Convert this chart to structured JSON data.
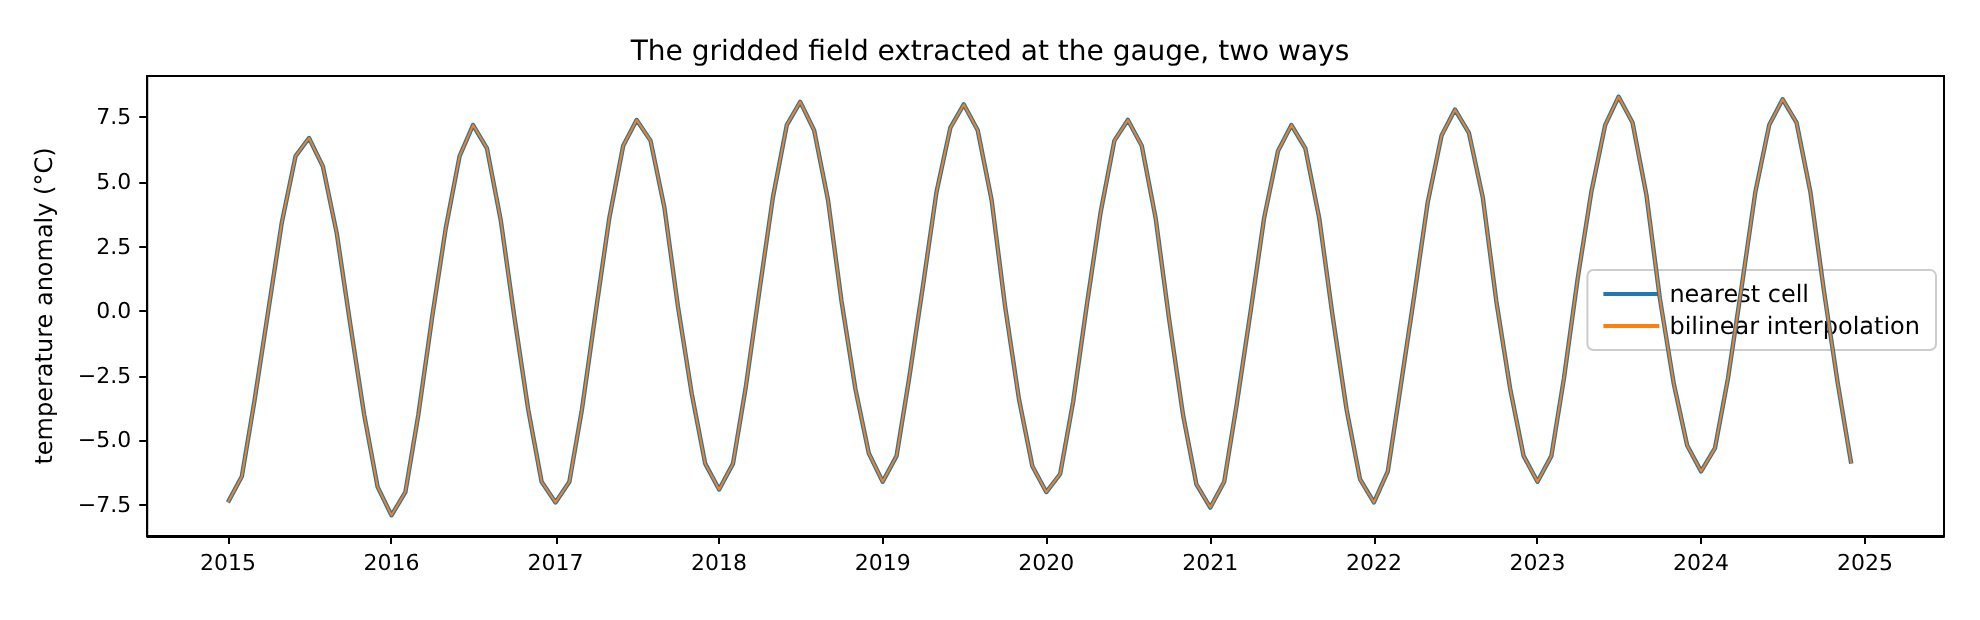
{
  "chart_data": {
    "type": "line",
    "title": "The gridded field extracted at the gauge, two ways",
    "ylabel": "temperature anomaly (°C)",
    "x": [
      "2015-01",
      "2015-02",
      "2015-03",
      "2015-04",
      "2015-05",
      "2015-06",
      "2015-07",
      "2015-08",
      "2015-09",
      "2015-10",
      "2015-11",
      "2015-12",
      "2016-01",
      "2016-02",
      "2016-03",
      "2016-04",
      "2016-05",
      "2016-06",
      "2016-07",
      "2016-08",
      "2016-09",
      "2016-10",
      "2016-11",
      "2016-12",
      "2017-01",
      "2017-02",
      "2017-03",
      "2017-04",
      "2017-05",
      "2017-06",
      "2017-07",
      "2017-08",
      "2017-09",
      "2017-10",
      "2017-11",
      "2017-12",
      "2018-01",
      "2018-02",
      "2018-03",
      "2018-04",
      "2018-05",
      "2018-06",
      "2018-07",
      "2018-08",
      "2018-09",
      "2018-10",
      "2018-11",
      "2018-12",
      "2019-01",
      "2019-02",
      "2019-03",
      "2019-04",
      "2019-05",
      "2019-06",
      "2019-07",
      "2019-08",
      "2019-09",
      "2019-10",
      "2019-11",
      "2019-12",
      "2020-01",
      "2020-02",
      "2020-03",
      "2020-04",
      "2020-05",
      "2020-06",
      "2020-07",
      "2020-08",
      "2020-09",
      "2020-10",
      "2020-11",
      "2020-12",
      "2021-01",
      "2021-02",
      "2021-03",
      "2021-04",
      "2021-05",
      "2021-06",
      "2021-07",
      "2021-08",
      "2021-09",
      "2021-10",
      "2021-11",
      "2021-12",
      "2022-01",
      "2022-02",
      "2022-03",
      "2022-04",
      "2022-05",
      "2022-06",
      "2022-07",
      "2022-08",
      "2022-09",
      "2022-10",
      "2022-11",
      "2022-12",
      "2023-01",
      "2023-02",
      "2023-03",
      "2023-04",
      "2023-05",
      "2023-06",
      "2023-07",
      "2023-08",
      "2023-09",
      "2023-10",
      "2023-11",
      "2023-12",
      "2024-01",
      "2024-02",
      "2024-03",
      "2024-04",
      "2024-05",
      "2024-06",
      "2024-07",
      "2024-08",
      "2024-09",
      "2024-10",
      "2024-11",
      "2024-12"
    ],
    "series": [
      {
        "name": "nearest cell",
        "color": "#1f77b4",
        "values": [
          -7.4,
          -6.4,
          -3.5,
          0,
          3.4,
          6.0,
          6.7,
          5.6,
          3.0,
          -0.5,
          -4.0,
          -6.8,
          -7.9,
          -7.0,
          -4.0,
          -0.2,
          3.2,
          6.0,
          7.2,
          6.3,
          3.5,
          -0.2,
          -3.8,
          -6.6,
          -7.4,
          -6.6,
          -3.8,
          0,
          3.6,
          6.4,
          7.4,
          6.6,
          4.0,
          0.2,
          -3.2,
          -5.9,
          -6.9,
          -5.9,
          -3.0,
          0.8,
          4.4,
          7.2,
          8.1,
          7.0,
          4.3,
          0.4,
          -3.0,
          -5.5,
          -6.6,
          -5.6,
          -2.6,
          1.0,
          4.6,
          7.1,
          8.0,
          7.0,
          4.3,
          0.2,
          -3.4,
          -6.0,
          -7.0,
          -6.3,
          -3.5,
          0.3,
          3.8,
          6.6,
          7.4,
          6.4,
          3.6,
          -0.3,
          -4.0,
          -6.7,
          -7.6,
          -6.6,
          -3.6,
          0,
          3.6,
          6.2,
          7.2,
          6.3,
          3.6,
          -0.2,
          -3.8,
          -6.5,
          -7.4,
          -6.2,
          -3.0,
          0.6,
          4.2,
          6.8,
          7.8,
          6.9,
          4.4,
          0.4,
          -3.0,
          -5.6,
          -6.6,
          -5.6,
          -2.6,
          1.3,
          4.6,
          7.2,
          8.3,
          7.3,
          4.5,
          0.5,
          -2.8,
          -5.2,
          -6.2,
          -5.3,
          -2.6,
          1.0,
          4.6,
          7.2,
          8.2,
          7.3,
          4.6,
          0.8,
          -2.8,
          -5.9
        ]
      },
      {
        "name": "bilinear interpolation",
        "color": "#ff7f0e",
        "values": [
          -7.4,
          -6.4,
          -3.5,
          0,
          3.4,
          6.0,
          6.7,
          5.6,
          3.0,
          -0.5,
          -4.0,
          -6.8,
          -7.9,
          -7.0,
          -4.0,
          -0.2,
          3.2,
          6.0,
          7.2,
          6.3,
          3.5,
          -0.2,
          -3.8,
          -6.6,
          -7.4,
          -6.6,
          -3.8,
          0,
          3.6,
          6.4,
          7.4,
          6.6,
          4.0,
          0.2,
          -3.2,
          -5.9,
          -6.9,
          -5.9,
          -3.0,
          0.8,
          4.4,
          7.2,
          8.1,
          7.0,
          4.3,
          0.4,
          -3.0,
          -5.5,
          -6.6,
          -5.6,
          -2.6,
          1.0,
          4.6,
          7.1,
          8.0,
          7.0,
          4.3,
          0.2,
          -3.4,
          -6.0,
          -7.0,
          -6.3,
          -3.5,
          0.3,
          3.8,
          6.6,
          7.4,
          6.4,
          3.6,
          -0.3,
          -4.0,
          -6.7,
          -7.6,
          -6.6,
          -3.6,
          0,
          3.6,
          6.2,
          7.2,
          6.3,
          3.6,
          -0.2,
          -3.8,
          -6.5,
          -7.4,
          -6.2,
          -3.0,
          0.6,
          4.2,
          6.8,
          7.8,
          6.9,
          4.4,
          0.4,
          -3.0,
          -5.6,
          -6.6,
          -5.6,
          -2.6,
          1.3,
          4.6,
          7.2,
          8.3,
          7.3,
          4.5,
          0.5,
          -2.8,
          -5.2,
          -6.2,
          -5.3,
          -2.6,
          1.0,
          4.6,
          7.2,
          8.2,
          7.3,
          4.6,
          0.8,
          -2.8,
          -5.9
        ]
      }
    ],
    "xlim": [
      "2014-07-05",
      "2025-06-26"
    ],
    "xticks": [
      "2015",
      "2016",
      "2017",
      "2018",
      "2019",
      "2020",
      "2021",
      "2022",
      "2023",
      "2024",
      "2025"
    ],
    "ylim": [
      -8.7,
      9.1
    ],
    "yticks": [
      {
        "value": -7.5,
        "label": "−7.5"
      },
      {
        "value": -5,
        "label": "−5.0"
      },
      {
        "value": -2.5,
        "label": "−2.5"
      },
      {
        "value": 0,
        "label": "0.0"
      },
      {
        "value": 2.5,
        "label": "2.5"
      },
      {
        "value": 5,
        "label": "5.0"
      },
      {
        "value": 7.5,
        "label": "7.5"
      }
    ],
    "legend": "center right",
    "grid": false
  }
}
